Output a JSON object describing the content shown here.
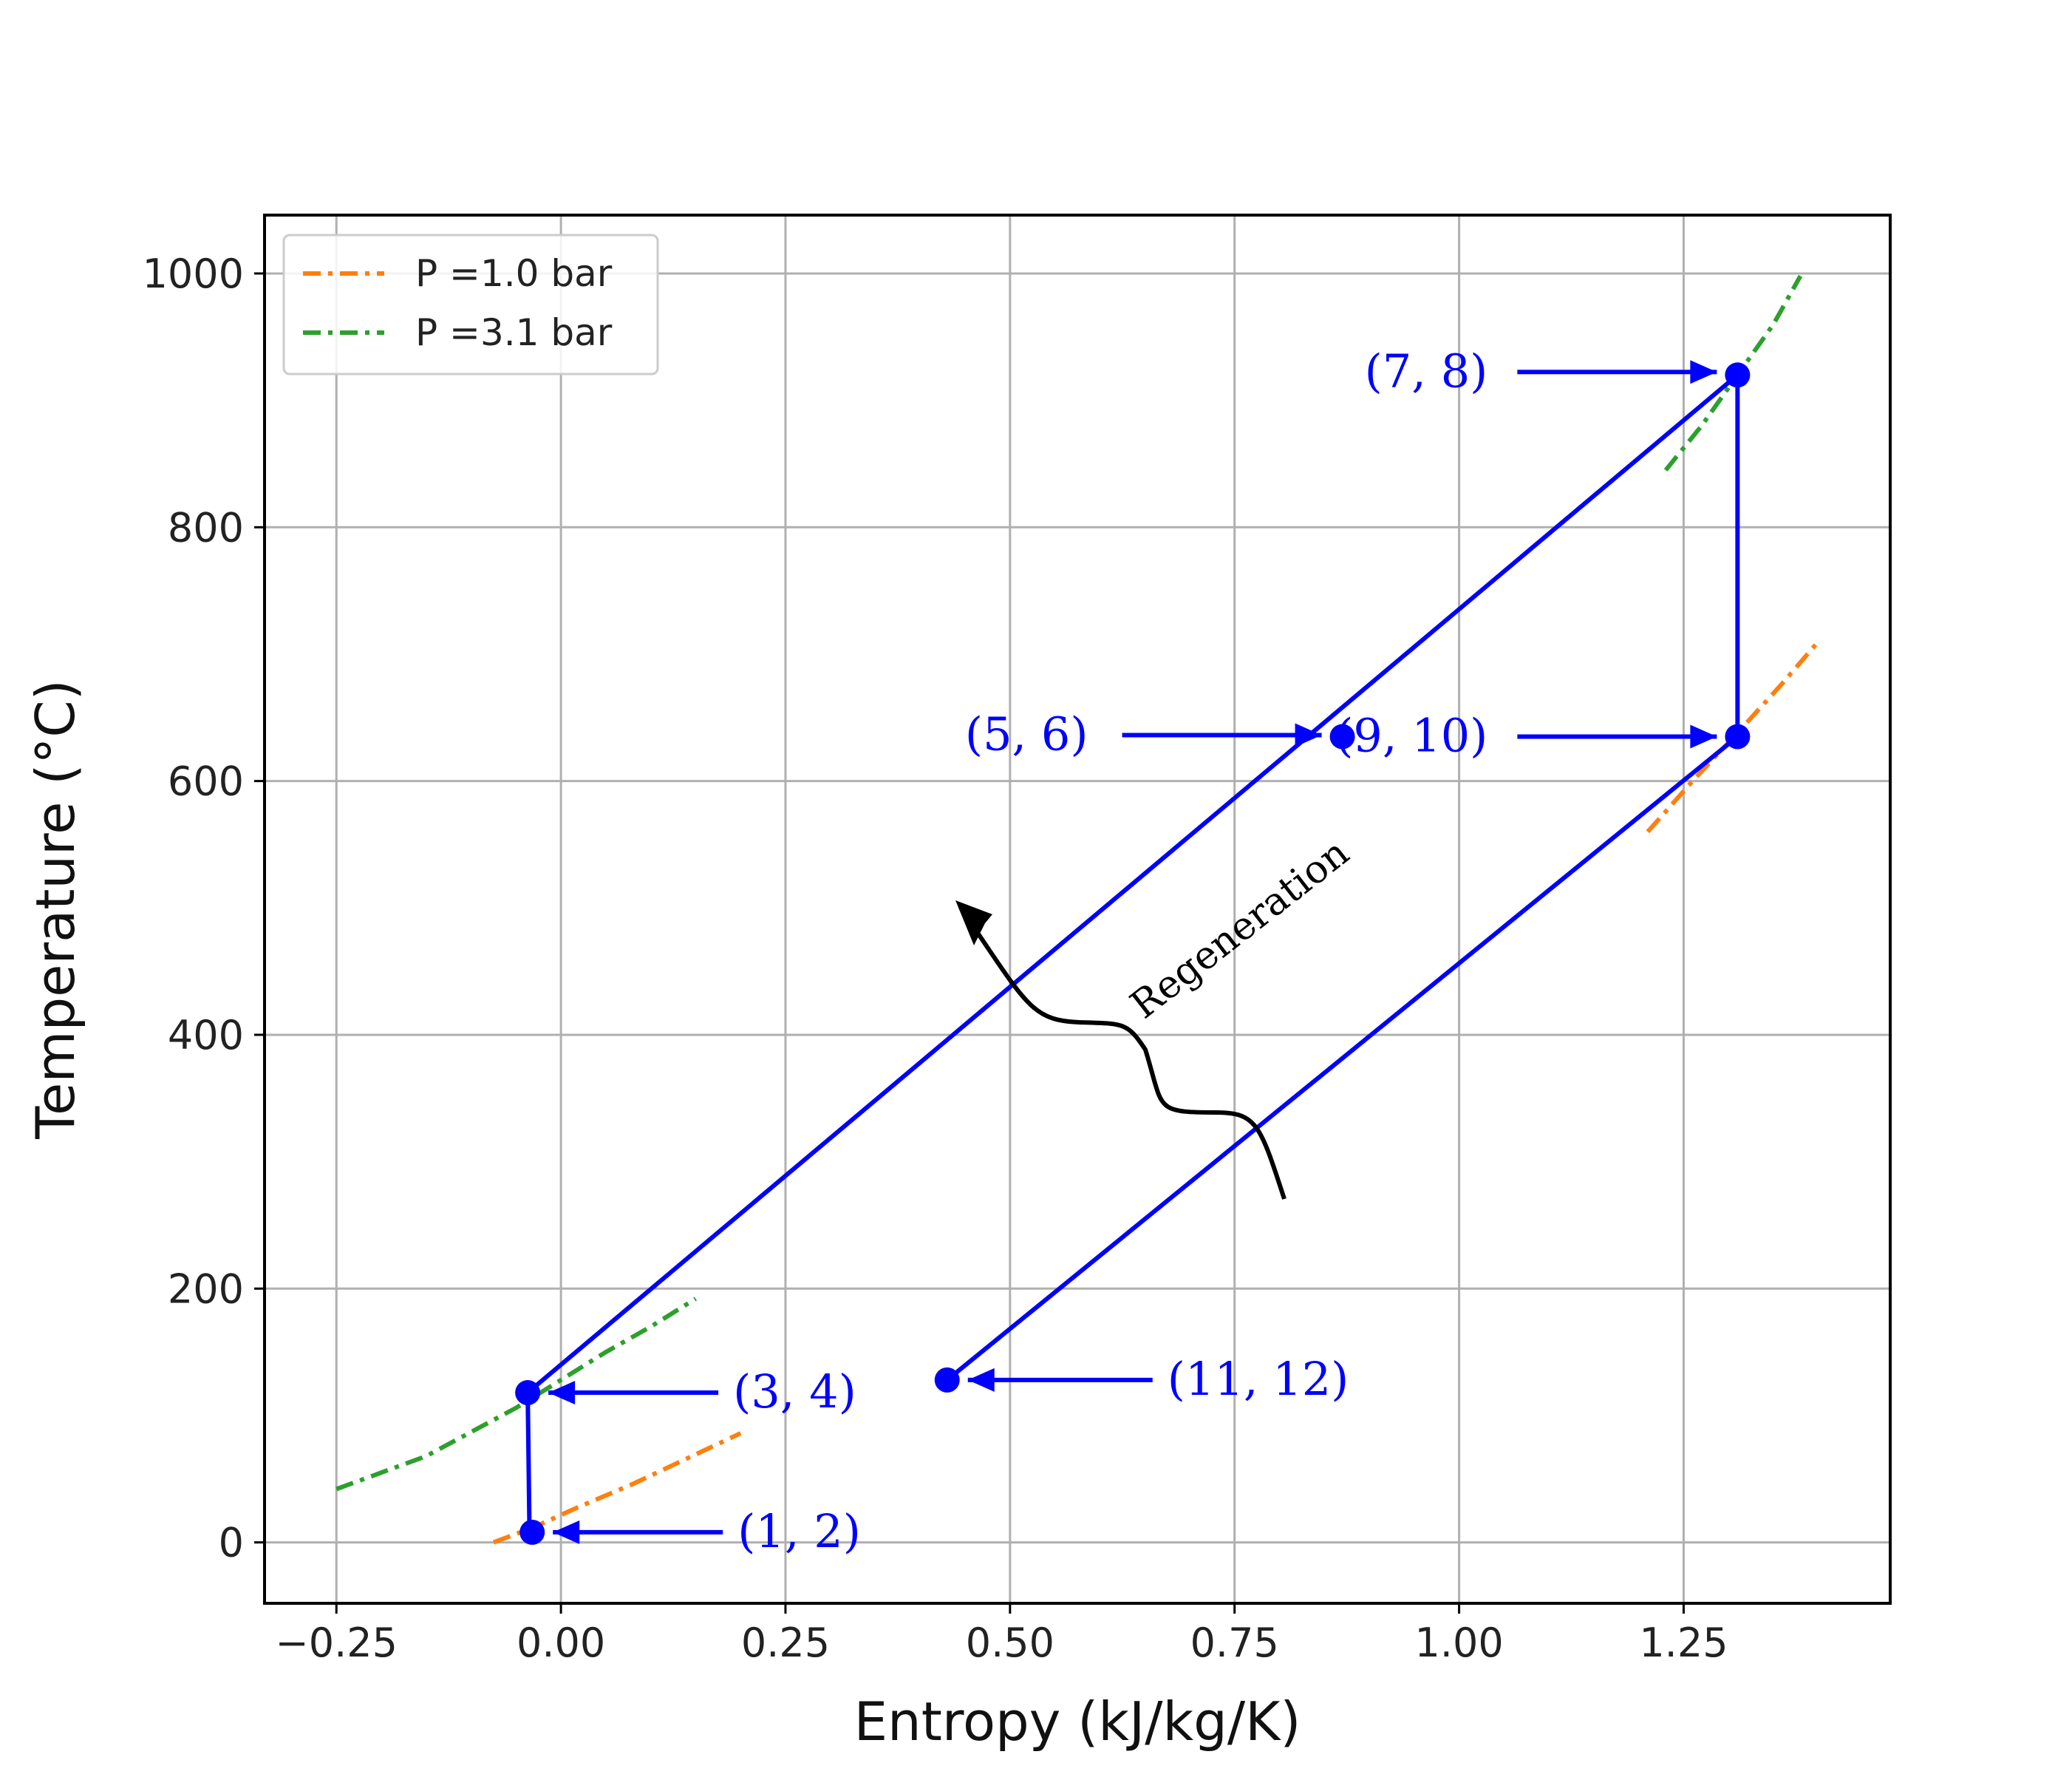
{
  "chart_data": {
    "type": "line",
    "xlabel": "Entropy (kJ/kg/K)",
    "ylabel": "Temperature (°C)",
    "xlim": [
      -0.33,
      1.48
    ],
    "ylim": [
      -48,
      1046
    ],
    "xticks": [
      -0.25,
      0.0,
      0.25,
      0.5,
      0.75,
      1.0,
      1.25
    ],
    "xtick_labels": [
      "−0.25",
      "0.00",
      "0.25",
      "0.50",
      "0.75",
      "1.00",
      "1.25"
    ],
    "yticks": [
      0,
      200,
      400,
      600,
      800,
      1000
    ],
    "ytick_labels": [
      "0",
      "200",
      "400",
      "600",
      "800",
      "1000"
    ],
    "grid": true,
    "legend_position": "top-left",
    "colors": {
      "cycle": "#0000ff",
      "p1": "#ff7f0e",
      "p2": "#2ca02c",
      "annotation": "#000000"
    },
    "series": [
      {
        "name": "P =1.0 bar",
        "style": "dashdot",
        "color": "#ff7f0e",
        "segments": [
          {
            "x": [
              -0.075,
              -0.03,
              0.02,
              0.08,
              0.14,
              0.2
            ],
            "y": [
              0,
              12,
              28,
              46,
              66,
              86
            ]
          },
          {
            "x": [
              1.21,
              1.26,
              1.31,
              1.36,
              1.4
            ],
            "y": [
              560,
              600,
              638,
              677,
              710
            ]
          }
        ]
      },
      {
        "name": "P =3.1 bar",
        "style": "dashdot",
        "color": "#2ca02c",
        "segments": [
          {
            "x": [
              -0.25,
              -0.15,
              -0.05,
              0.0,
              0.05,
              0.1,
              0.15
            ],
            "y": [
              42,
              68,
              106,
              128,
              150,
              170,
              192
            ]
          },
          {
            "x": [
              1.23,
              1.27,
              1.31,
              1.35,
              1.38
            ],
            "y": [
              845,
              880,
              920,
              960,
              998
            ]
          }
        ]
      }
    ],
    "cycle": {
      "color": "#0000ff",
      "paths": [
        {
          "x": [
            -0.035,
            -0.037,
            1.31,
            1.31,
            0.43
          ],
          "y": [
            8,
            118,
            920,
            635,
            128
          ]
        }
      ],
      "points": [
        {
          "label": "(1, 2)",
          "x": -0.032,
          "y": 8
        },
        {
          "label": "(3, 4)",
          "x": -0.037,
          "y": 118
        },
        {
          "label": "(5, 6)",
          "x": 0.87,
          "y": 635
        },
        {
          "label": "(7, 8)",
          "x": 1.31,
          "y": 920
        },
        {
          "label": "(9, 10)",
          "x": 1.31,
          "y": 635
        },
        {
          "label": "(11, 12)",
          "x": 0.43,
          "y": 128
        }
      ]
    },
    "annotations": [
      {
        "text": "Regeneration",
        "x": 0.78,
        "y": 555
      }
    ]
  }
}
